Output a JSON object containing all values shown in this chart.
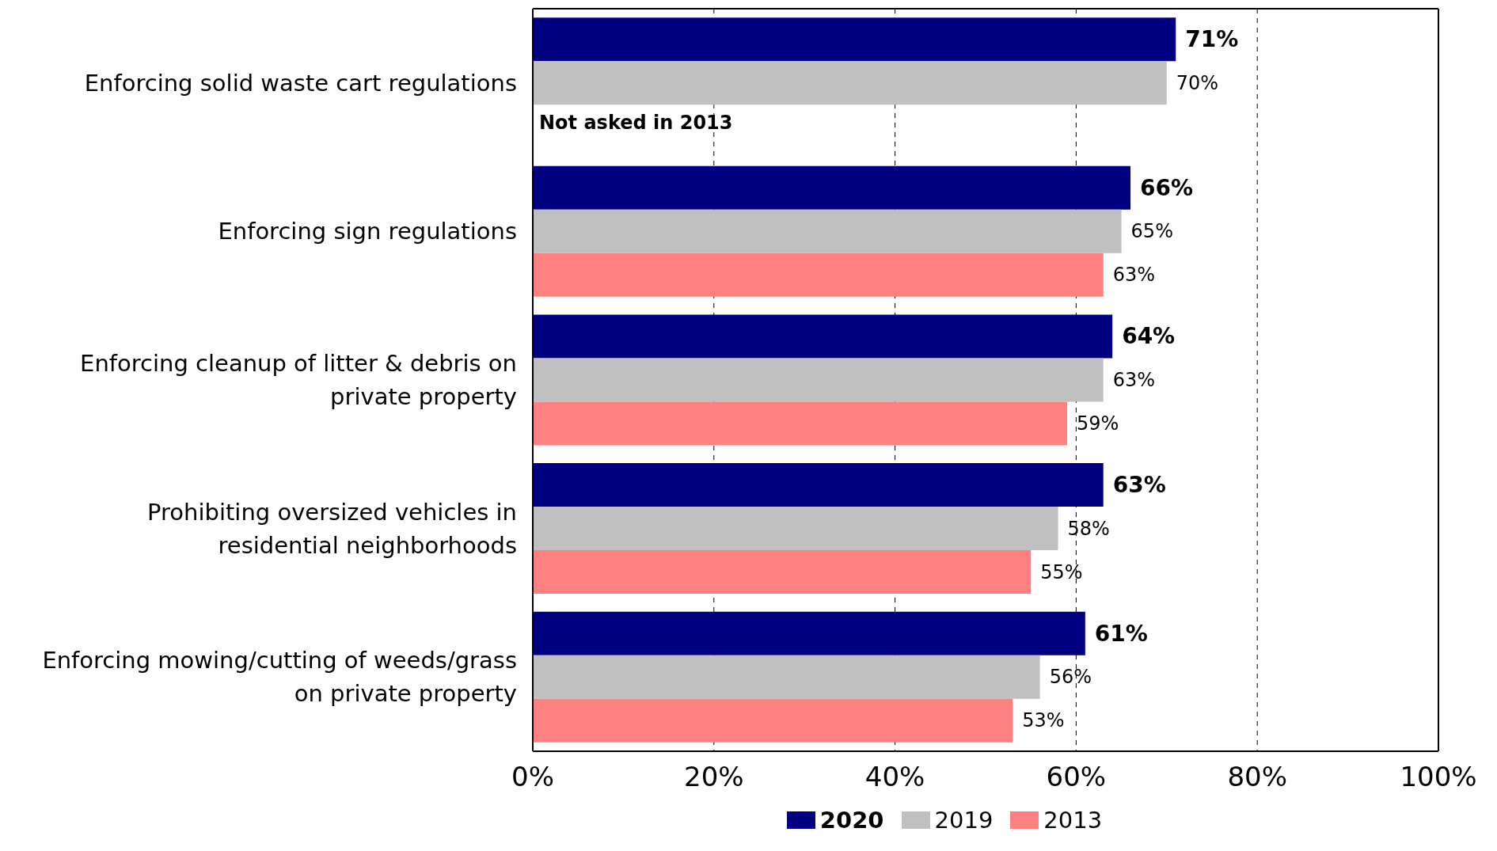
{
  "chart_data": {
    "type": "bar",
    "orientation": "horizontal",
    "categories": [
      "Enforcing solid waste cart regulations",
      "Enforcing sign regulations",
      "Enforcing cleanup of litter & debris on private property",
      "Prohibiting oversized vehicles in residential neighborhoods",
      "Enforcing mowing/cutting of weeds/grass on private property"
    ],
    "series": [
      {
        "name": "2020",
        "color": "#000080",
        "values": [
          71,
          66,
          64,
          63,
          61
        ],
        "value_labels": [
          "71%",
          "66%",
          "64%",
          "63%",
          "61%"
        ]
      },
      {
        "name": "2019",
        "color": "#c0c0c0",
        "values": [
          70,
          65,
          63,
          58,
          56
        ],
        "value_labels": [
          "70%",
          "65%",
          "63%",
          "58%",
          "56%"
        ]
      },
      {
        "name": "2013",
        "color": "#ff8080",
        "values": [
          null,
          63,
          59,
          55,
          53
        ],
        "value_labels": [
          null,
          "63%",
          "59%",
          "55%",
          "53%"
        ]
      }
    ],
    "xlim": [
      0,
      100
    ],
    "xticks": [
      {
        "value": 0,
        "label": "0%"
      },
      {
        "value": 20,
        "label": "20%"
      },
      {
        "value": 40,
        "label": "40%"
      },
      {
        "value": 60,
        "label": "60%"
      },
      {
        "value": 80,
        "label": "80%"
      },
      {
        "value": 100,
        "label": "100%"
      }
    ],
    "grid": "x",
    "legend": "bottom",
    "annotations": [
      {
        "text": "Not asked in 2013",
        "x": 0,
        "y": "Enforcing solid waste cart regulations"
      }
    ]
  }
}
